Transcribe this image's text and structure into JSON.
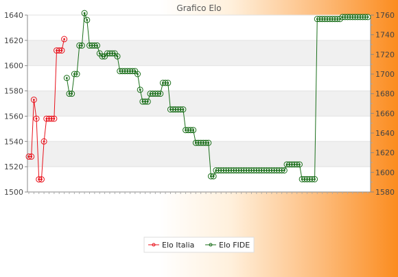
{
  "chart_data": {
    "type": "line",
    "title": "Grafico Elo",
    "xlabel": "",
    "y_left": {
      "ylim": [
        1500,
        1640
      ],
      "ticks": [
        1500,
        1520,
        1540,
        1560,
        1580,
        1600,
        1620,
        1640
      ]
    },
    "y_right": {
      "ylim": [
        1580,
        1760
      ],
      "ticks": [
        1580,
        1600,
        1620,
        1640,
        1660,
        1680,
        1700,
        1720,
        1740,
        1760
      ]
    },
    "grid": true,
    "legend_position": "bottom-center",
    "n_points": 135,
    "series": [
      {
        "name": "Elo Italia",
        "axis": "left",
        "color": "#e8101a",
        "points": [
          [
            0,
            1528
          ],
          [
            1,
            1528
          ],
          [
            2,
            1573
          ],
          [
            3,
            1558
          ],
          [
            4,
            1510
          ],
          [
            5,
            1510
          ],
          [
            6,
            1540
          ],
          [
            7,
            1558
          ],
          [
            8,
            1558
          ],
          [
            9,
            1558
          ],
          [
            10,
            1558
          ],
          [
            11,
            1612
          ],
          [
            12,
            1612
          ],
          [
            13,
            1612
          ],
          [
            14,
            1621
          ]
        ]
      },
      {
        "name": "Elo FIDE",
        "axis": "right",
        "color": "#1a6e1a",
        "points": [
          [
            15,
            1696
          ],
          [
            16,
            1680
          ],
          [
            17,
            1680
          ],
          [
            18,
            1700
          ],
          [
            19,
            1700
          ],
          [
            20,
            1729
          ],
          [
            21,
            1729
          ],
          [
            22,
            1762
          ],
          [
            23,
            1755
          ],
          [
            24,
            1729
          ],
          [
            25,
            1729
          ],
          [
            26,
            1729
          ],
          [
            27,
            1729
          ],
          [
            28,
            1721
          ],
          [
            29,
            1718
          ],
          [
            30,
            1718
          ],
          [
            31,
            1721
          ],
          [
            32,
            1721
          ],
          [
            33,
            1721
          ],
          [
            34,
            1721
          ],
          [
            35,
            1718
          ],
          [
            36,
            1703
          ],
          [
            37,
            1703
          ],
          [
            38,
            1703
          ],
          [
            39,
            1703
          ],
          [
            40,
            1703
          ],
          [
            41,
            1703
          ],
          [
            42,
            1703
          ],
          [
            43,
            1700
          ],
          [
            44,
            1684
          ],
          [
            45,
            1672
          ],
          [
            46,
            1672
          ],
          [
            47,
            1672
          ],
          [
            48,
            1680
          ],
          [
            49,
            1680
          ],
          [
            50,
            1680
          ],
          [
            51,
            1680
          ],
          [
            52,
            1680
          ],
          [
            53,
            1691
          ],
          [
            54,
            1691
          ],
          [
            55,
            1691
          ],
          [
            56,
            1664
          ],
          [
            57,
            1664
          ],
          [
            58,
            1664
          ],
          [
            59,
            1664
          ],
          [
            60,
            1664
          ],
          [
            61,
            1664
          ],
          [
            62,
            1643
          ],
          [
            63,
            1643
          ],
          [
            64,
            1643
          ],
          [
            65,
            1643
          ],
          [
            66,
            1630
          ],
          [
            67,
            1630
          ],
          [
            68,
            1630
          ],
          [
            69,
            1630
          ],
          [
            70,
            1630
          ],
          [
            71,
            1630
          ],
          [
            72,
            1596
          ],
          [
            73,
            1596
          ],
          [
            74,
            1602
          ],
          [
            75,
            1602
          ],
          [
            76,
            1602
          ],
          [
            77,
            1602
          ],
          [
            78,
            1602
          ],
          [
            79,
            1602
          ],
          [
            80,
            1602
          ],
          [
            81,
            1602
          ],
          [
            82,
            1602
          ],
          [
            83,
            1602
          ],
          [
            84,
            1602
          ],
          [
            85,
            1602
          ],
          [
            86,
            1602
          ],
          [
            87,
            1602
          ],
          [
            88,
            1602
          ],
          [
            89,
            1602
          ],
          [
            90,
            1602
          ],
          [
            91,
            1602
          ],
          [
            92,
            1602
          ],
          [
            93,
            1602
          ],
          [
            94,
            1602
          ],
          [
            95,
            1602
          ],
          [
            96,
            1602
          ],
          [
            97,
            1602
          ],
          [
            98,
            1602
          ],
          [
            99,
            1602
          ],
          [
            100,
            1602
          ],
          [
            101,
            1602
          ],
          [
            102,
            1608
          ],
          [
            103,
            1608
          ],
          [
            104,
            1608
          ],
          [
            105,
            1608
          ],
          [
            106,
            1608
          ],
          [
            107,
            1608
          ],
          [
            108,
            1593
          ],
          [
            109,
            1593
          ],
          [
            110,
            1593
          ],
          [
            111,
            1593
          ],
          [
            112,
            1593
          ],
          [
            113,
            1593
          ],
          [
            114,
            1756
          ],
          [
            115,
            1756
          ],
          [
            116,
            1756
          ],
          [
            117,
            1756
          ],
          [
            118,
            1756
          ],
          [
            119,
            1756
          ],
          [
            120,
            1756
          ],
          [
            121,
            1756
          ],
          [
            122,
            1756
          ],
          [
            123,
            1756
          ],
          [
            124,
            1758
          ],
          [
            125,
            1758
          ],
          [
            126,
            1758
          ],
          [
            127,
            1758
          ],
          [
            128,
            1758
          ],
          [
            129,
            1758
          ],
          [
            130,
            1758
          ],
          [
            131,
            1758
          ],
          [
            132,
            1758
          ],
          [
            133,
            1758
          ],
          [
            134,
            1758
          ]
        ]
      }
    ]
  }
}
